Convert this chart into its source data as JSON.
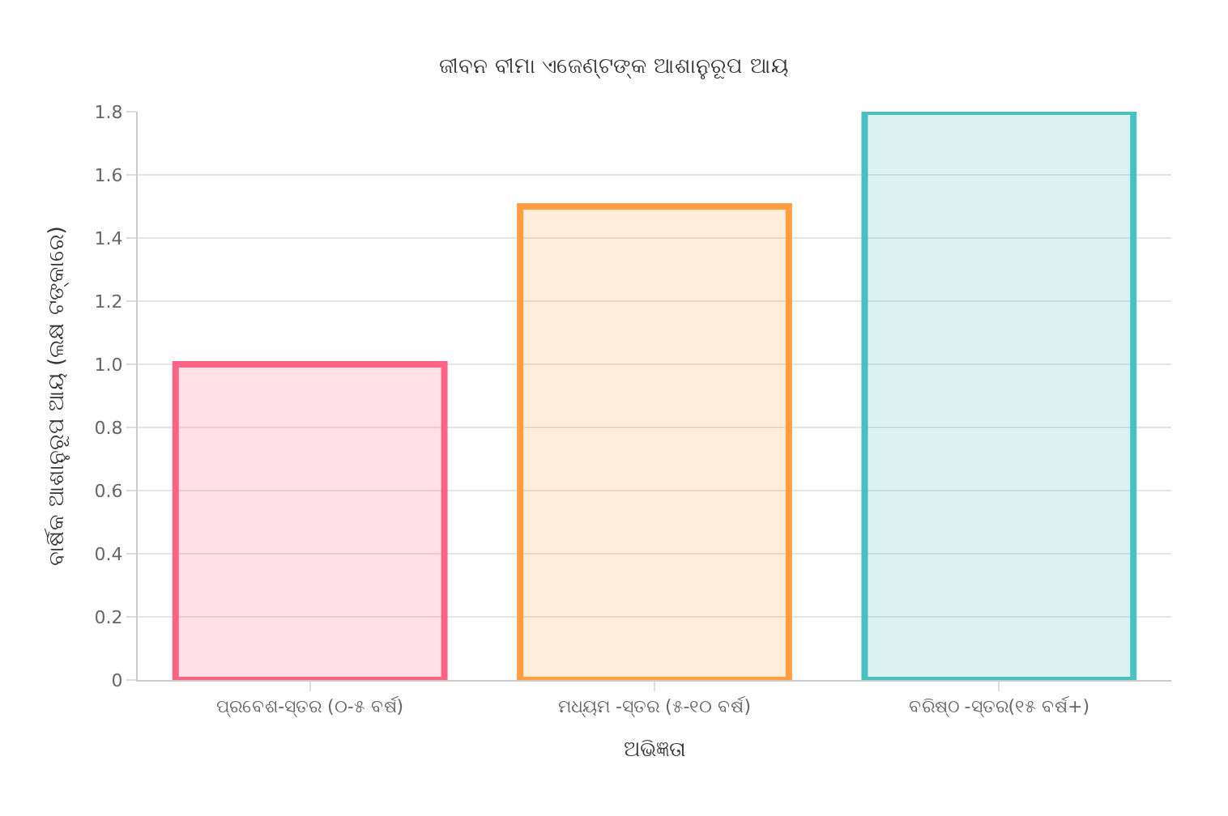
{
  "chart_data": {
    "type": "bar",
    "title": "ଜୀବନ ବୀମା ଏଜେଣ୍ଟଙ୍କ ଆଶାନୁରୂପ ଆୟ",
    "xlabel": "ଅଭିଜ୍ଞତା",
    "ylabel": "ବାର୍ଷିକ ଆଶାନୁରୂପ ଆୟ (ଲକ୍ଷ ଟଙ୍କାରେ)",
    "categories": [
      "ପ୍ରବେଶ-ସ୍ତର (୦-୫ ବର୍ଷ)",
      "ମଧ୍ୟମ -ସ୍ତର (୫-୧୦ ବର୍ଷ)",
      "ବରିଷ୍ଠ -ସ୍ତର(୧୫ ବର୍ଷ+)"
    ],
    "values": [
      1.0,
      1.5,
      1.8
    ],
    "colors": [
      "#ff6384",
      "#ff9f40",
      "#4bc0c0"
    ],
    "ylim": [
      0,
      1.8
    ],
    "yticks": [
      0,
      0.2,
      0.4,
      0.6,
      0.8,
      {
        "value": 1,
        "label": "1.0"
      },
      1.2,
      1.4,
      1.6,
      1.8
    ],
    "grid": "y",
    "legend": false
  }
}
